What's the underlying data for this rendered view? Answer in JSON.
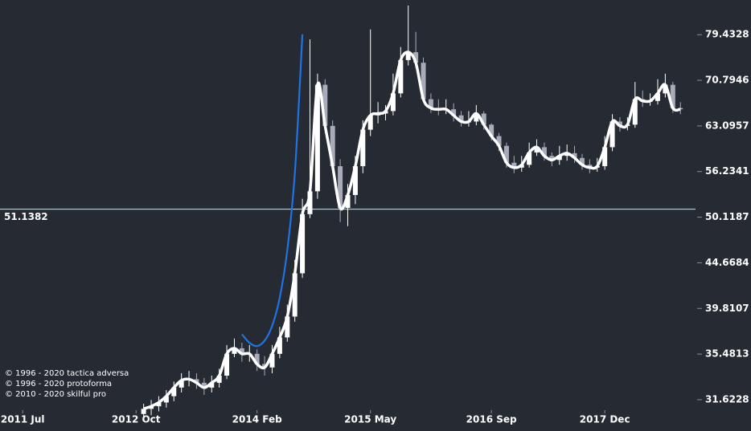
{
  "chart_data": {
    "type": "candlestick",
    "log_scale": true,
    "up_color": "#ffffff",
    "down_color": "#a9abbb",
    "line_color": "#ffffff",
    "x": [
      "2012-11",
      "2012-12",
      "2013-01",
      "2013-02",
      "2013-03",
      "2013-04",
      "2013-05",
      "2013-06",
      "2013-07",
      "2013-08",
      "2013-09",
      "2013-10",
      "2013-11",
      "2013-12",
      "2014-01",
      "2014-02",
      "2014-03",
      "2014-04",
      "2014-05",
      "2014-06",
      "2014-07",
      "2014-08",
      "2014-09",
      "2014-10",
      "2014-11",
      "2014-12",
      "2015-01",
      "2015-02",
      "2015-03",
      "2015-04",
      "2015-05",
      "2015-06",
      "2015-07",
      "2015-08",
      "2015-09",
      "2015-10",
      "2015-11",
      "2015-12",
      "2016-01",
      "2016-02",
      "2016-03",
      "2016-04",
      "2016-05",
      "2016-06",
      "2016-07",
      "2016-08",
      "2016-09",
      "2016-10",
      "2016-11",
      "2016-12",
      "2017-01",
      "2017-02",
      "2017-03",
      "2017-04",
      "2017-05",
      "2017-06",
      "2017-07",
      "2017-08",
      "2017-09",
      "2017-10",
      "2017-11",
      "2017-12",
      "2018-01",
      "2018-02",
      "2018-03",
      "2018-04",
      "2018-05",
      "2018-06",
      "2018-07",
      "2018-08",
      "2018-09",
      "2018-10"
    ],
    "open": [
      30.5,
      30.9,
      31.1,
      31.4,
      31.9,
      32.6,
      33.2,
      33.3,
      33.0,
      32.6,
      33.0,
      33.6,
      35.5,
      36.0,
      35.5,
      35.5,
      34.6,
      34.3,
      35.5,
      37.0,
      39.0,
      43.5,
      50.5,
      53.5,
      70.0,
      63.1,
      57.0,
      51.3,
      53.0,
      57.0,
      62.5,
      64.8,
      65.1,
      65.5,
      68.5,
      74.5,
      76.0,
      74.0,
      67.5,
      66.0,
      65.8,
      65.8,
      64.8,
      63.8,
      63.8,
      65.1,
      63.3,
      61.5,
      60.0,
      57.5,
      56.8,
      57.2,
      59.0,
      59.8,
      58.5,
      57.9,
      58.5,
      58.9,
      58.2,
      57.2,
      56.8,
      57.0,
      59.8,
      63.8,
      63.1,
      63.3,
      67.5,
      67.2,
      67.2,
      68.5,
      70.0,
      66.0
    ],
    "high": [
      31.3,
      31.6,
      31.9,
      32.4,
      33.1,
      33.8,
      34.0,
      33.8,
      33.4,
      33.6,
      34.2,
      36.3,
      36.9,
      36.5,
      36.3,
      35.9,
      35.3,
      36.3,
      38.0,
      40.2,
      45.0,
      52.5,
      78.5,
      72.0,
      71.0,
      64.0,
      58.0,
      54.5,
      58.5,
      64.0,
      80.5,
      67.0,
      66.5,
      72.0,
      77.0,
      85.5,
      80.0,
      75.0,
      68.5,
      67.5,
      67.5,
      66.8,
      65.5,
      65.5,
      66.5,
      65.5,
      63.5,
      62.0,
      60.5,
      58.5,
      58.5,
      60.5,
      61.0,
      60.5,
      59.0,
      60.0,
      60.2,
      60.0,
      58.8,
      58.0,
      58.2,
      61.5,
      65.0,
      64.5,
      64.5,
      70.5,
      69.0,
      68.5,
      71.0,
      72.0,
      70.5,
      67.0
    ],
    "low": [
      30.0,
      30.4,
      30.7,
      31.0,
      31.5,
      32.2,
      32.7,
      32.5,
      32.0,
      32.2,
      32.6,
      33.3,
      35.2,
      34.8,
      34.8,
      34.0,
      33.6,
      33.8,
      35.1,
      36.6,
      38.5,
      43.0,
      50.0,
      52.5,
      62.0,
      56.0,
      49.5,
      49.0,
      51.8,
      56.0,
      61.5,
      63.5,
      64.0,
      64.8,
      67.8,
      73.5,
      73.0,
      67.0,
      65.2,
      64.8,
      65.0,
      63.8,
      63.0,
      63.0,
      63.2,
      62.5,
      60.8,
      59.2,
      56.8,
      56.0,
      56.2,
      56.8,
      58.5,
      57.8,
      57.0,
      57.2,
      57.8,
      57.5,
      56.5,
      56.0,
      56.2,
      56.5,
      59.2,
      62.2,
      62.4,
      62.8,
      66.2,
      66.4,
      66.6,
      67.8,
      65.2,
      65.0
    ],
    "close": [
      30.9,
      31.1,
      31.4,
      31.9,
      32.6,
      33.2,
      33.3,
      33.0,
      32.6,
      33.0,
      33.6,
      35.5,
      36.0,
      35.5,
      35.5,
      34.6,
      34.3,
      35.5,
      37.0,
      39.0,
      43.5,
      50.5,
      53.5,
      70.0,
      63.1,
      57.0,
      51.3,
      53.0,
      57.0,
      62.5,
      64.8,
      65.1,
      65.5,
      68.5,
      74.5,
      76.0,
      74.0,
      67.5,
      66.0,
      65.8,
      65.8,
      64.8,
      63.8,
      63.8,
      65.1,
      63.3,
      61.5,
      60.0,
      57.5,
      56.8,
      57.2,
      59.0,
      59.8,
      58.5,
      57.9,
      58.5,
      58.9,
      58.2,
      57.2,
      56.8,
      57.0,
      59.8,
      63.8,
      63.1,
      63.3,
      67.5,
      67.2,
      67.2,
      68.5,
      70.0,
      66.0,
      65.8
    ],
    "projection": {
      "color": "#1f74e0",
      "x": [
        "2013-12",
        "2014-01",
        "2014-02",
        "2014-03",
        "2014-04",
        "2014-05",
        "2014-06",
        "2014-07",
        "2014-08"
      ],
      "values": [
        37.3,
        36.5,
        36.2,
        36.7,
        38.1,
        40.9,
        46.1,
        56.0,
        79.5
      ]
    },
    "hline": {
      "value": 51.1382,
      "color": "#cfe6f2"
    },
    "xlim": [
      "2011-04",
      "2018-12"
    ],
    "xticks": [
      {
        "value": "2011-07",
        "label": "2011 Jul"
      },
      {
        "value": "2012-10",
        "label": "2012 Oct"
      },
      {
        "value": "2014-02",
        "label": "2014 Feb"
      },
      {
        "value": "2015-05",
        "label": "2015 May"
      },
      {
        "value": "2016-09",
        "label": "2016 Sep"
      },
      {
        "value": "2017-12",
        "label": "2017 Dec"
      }
    ],
    "ylim": [
      30.86,
      86.7
    ],
    "yticks": [
      31.6228,
      35.4813,
      39.8107,
      44.6684,
      50.1187,
      56.2341,
      63.0957,
      70.7946,
      79.4328
    ],
    "annotations": [
      "© 1996 - 2020 tactica adversa",
      "© 1996 - 2020 protoforma",
      "© 2010 - 2020 skilful pro"
    ]
  }
}
